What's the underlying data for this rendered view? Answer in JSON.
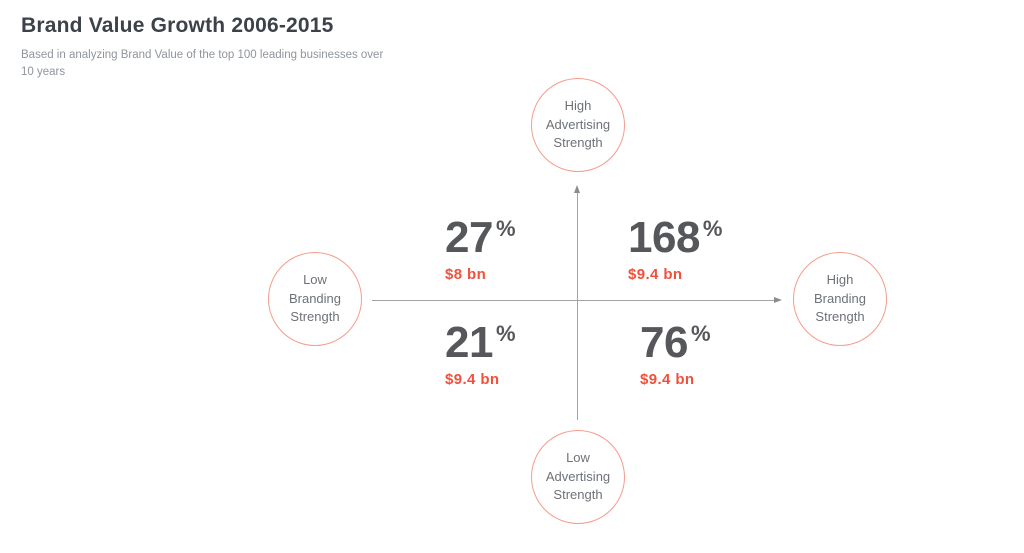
{
  "page": {
    "title": "Brand Value Growth 2006-2015",
    "subtitle": "Based in analyzing Brand Value of the top 100 leading businesses over 10 years"
  },
  "chart_data": {
    "type": "quadrant",
    "title": "Brand Value Growth 2006-2015",
    "subtitle": "Based in analyzing Brand Value of the top 100 leading businesses over 10 years",
    "x_axis": {
      "low": "Low Branding Strength",
      "high": "High Branding Strength"
    },
    "y_axis": {
      "low": "Low Advertising Strength",
      "high": "High Advertising Strength"
    },
    "percent_sign": "%",
    "quadrants": [
      {
        "position": "top-left",
        "x": "low branding",
        "y": "high advertising",
        "growth_percent": 27,
        "growth_label": "27",
        "brand_value": "$8 bn"
      },
      {
        "position": "top-right",
        "x": "high branding",
        "y": "high advertising",
        "growth_percent": 168,
        "growth_label": "168",
        "brand_value": "$9.4 bn"
      },
      {
        "position": "bottom-left",
        "x": "low branding",
        "y": "low advertising",
        "growth_percent": 21,
        "growth_label": "21",
        "brand_value": "$9.4 bn"
      },
      {
        "position": "bottom-right",
        "x": "high branding",
        "y": "low advertising",
        "growth_percent": 76,
        "growth_label": "76",
        "brand_value": "$9.4 bn"
      }
    ],
    "legend_position": "none",
    "grid": false
  },
  "colors": {
    "title_text": "#3d424a",
    "subtitle_text": "#8f959c",
    "value_text": "#55575b",
    "highlight_red": "#f0503c",
    "circle_stroke": "#f59c8c",
    "node_label_text": "#6d7277",
    "axis_line": "#a3a3a3",
    "background": "#ffffff"
  }
}
